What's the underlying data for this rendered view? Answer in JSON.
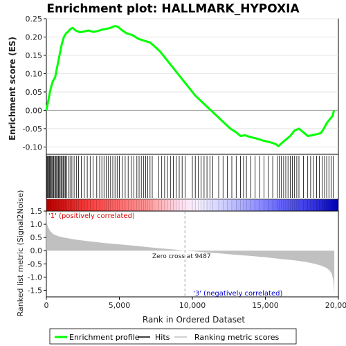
{
  "chart_data": {
    "type": "line",
    "title": "Enrichment plot: HALLMARK_HYPOXIA",
    "top_panel": {
      "ylabel": "Enrichment score (ES)",
      "ylim": [
        -0.12,
        0.25
      ],
      "yticks": [
        "0.25",
        "0.20",
        "0.15",
        "0.10",
        "0.05",
        "0.00",
        "-0.05",
        "-0.10"
      ],
      "ytick_values": [
        0.25,
        0.2,
        0.15,
        0.1,
        0.05,
        0.0,
        -0.05,
        -0.1
      ],
      "series": [
        {
          "name": "Enrichment profile",
          "color": "#00ff00",
          "x": [
            0,
            150,
            300,
            450,
            600,
            750,
            900,
            1050,
            1200,
            1350,
            1500,
            1650,
            1800,
            2000,
            2300,
            2600,
            2900,
            3200,
            3500,
            3800,
            4100,
            4400,
            4700,
            4900,
            5200,
            5500,
            5900,
            6300,
            6700,
            7100,
            7400,
            7800,
            8200,
            8600,
            9000,
            9400,
            9800,
            10200,
            10600,
            11000,
            11400,
            11800,
            12200,
            12600,
            13000,
            13300,
            13600,
            13900,
            14200,
            14500,
            14800,
            15100,
            15400,
            15700,
            15900,
            16100,
            16400,
            16700,
            17000,
            17300,
            17600,
            17900,
            18200,
            18500,
            18800,
            19000,
            19200,
            19400,
            19600,
            19700
          ],
          "y": [
            0.0,
            0.03,
            0.06,
            0.08,
            0.09,
            0.12,
            0.15,
            0.18,
            0.2,
            0.21,
            0.215,
            0.222,
            0.225,
            0.218,
            0.213,
            0.215,
            0.218,
            0.214,
            0.216,
            0.22,
            0.222,
            0.225,
            0.23,
            0.228,
            0.218,
            0.21,
            0.205,
            0.195,
            0.19,
            0.185,
            0.175,
            0.16,
            0.14,
            0.12,
            0.1,
            0.08,
            0.06,
            0.04,
            0.025,
            0.01,
            -0.005,
            -0.02,
            -0.035,
            -0.05,
            -0.06,
            -0.07,
            -0.068,
            -0.072,
            -0.075,
            -0.078,
            -0.082,
            -0.085,
            -0.088,
            -0.092,
            -0.098,
            -0.09,
            -0.08,
            -0.07,
            -0.055,
            -0.05,
            -0.06,
            -0.07,
            -0.068,
            -0.065,
            -0.062,
            -0.05,
            -0.035,
            -0.025,
            -0.015,
            0.0
          ]
        }
      ]
    },
    "hits_panel": {
      "hit_ranks": [
        20,
        60,
        110,
        150,
        210,
        260,
        320,
        380,
        440,
        500,
        570,
        640,
        700,
        760,
        830,
        890,
        950,
        1020,
        1090,
        1160,
        1230,
        1300,
        1400,
        1500,
        1620,
        1750,
        1900,
        2050,
        2200,
        2400,
        2600,
        2800,
        3000,
        3200,
        3450,
        3650,
        3800,
        3950,
        4100,
        4250,
        4400,
        4550,
        4700,
        4850,
        5000,
        5200,
        5400,
        5600,
        5800,
        6000,
        6200,
        6350,
        6500,
        6650,
        6800,
        6950,
        7100,
        7250,
        7700,
        7900,
        8100,
        8300,
        8500,
        8700,
        8900,
        9100,
        9300,
        9500,
        10000,
        10200,
        10400,
        10600,
        10800,
        11000,
        11200,
        11400,
        11800,
        12100,
        12400,
        12700,
        13000,
        13300,
        13500,
        13700,
        14000,
        14300,
        14600,
        14900,
        15200,
        15500,
        15800,
        15950,
        16100,
        16250,
        16400,
        16550,
        16700,
        16850,
        17000,
        17150,
        17300,
        17600,
        17900,
        18100,
        18300,
        18500,
        18700,
        18900,
        19050,
        19200,
        19350,
        19500,
        19650
      ]
    },
    "colorbar": {
      "positive_label": "'1' (positively correlated)",
      "negative_label": "'3' (negatively correlated)"
    },
    "bottom_panel": {
      "ylabel": "Ranked list metric (Signal2Noise)",
      "xlabel": "Rank in Ordered Dataset",
      "ylim": [
        -1.75,
        1.5
      ],
      "yticks": [
        "1.5",
        "1.0",
        "0.5",
        "0.0",
        "-0.5",
        "-1.0",
        "-1.5"
      ],
      "ytick_values": [
        1.5,
        1.0,
        0.5,
        0.0,
        -0.5,
        -1.0,
        -1.5
      ],
      "xlim": [
        0,
        20000
      ],
      "xticks": [
        "0",
        "5,000",
        "10,000",
        "15,000",
        "20,000"
      ],
      "xtick_values": [
        0,
        5000,
        10000,
        15000,
        20000
      ],
      "zero_cross_label": "Zero cross at 9487",
      "zero_cross_rank": 9487,
      "metric_curve": {
        "x": [
          0,
          50,
          150,
          300,
          500,
          800,
          1200,
          2000,
          3000,
          4000,
          5000,
          6000,
          7000,
          8000,
          9000,
          9487,
          10000,
          11000,
          12000,
          13000,
          14000,
          15000,
          16000,
          17000,
          17800,
          18400,
          18900,
          19200,
          19400,
          19550,
          19650,
          19720
        ],
        "y": [
          1.5,
          1.0,
          0.85,
          0.72,
          0.62,
          0.55,
          0.5,
          0.42,
          0.35,
          0.29,
          0.24,
          0.19,
          0.13,
          0.08,
          0.03,
          0.0,
          -0.02,
          -0.07,
          -0.11,
          -0.16,
          -0.2,
          -0.25,
          -0.31,
          -0.37,
          -0.43,
          -0.5,
          -0.58,
          -0.66,
          -0.75,
          -0.88,
          -1.1,
          -1.58
        ]
      }
    },
    "legend": {
      "items": [
        {
          "label": "Enrichment profile",
          "color": "#00ff00"
        },
        {
          "label": "Hits",
          "color": "#000000"
        },
        {
          "label": "Ranking metric scores",
          "color": "#c0c0c0"
        }
      ],
      "placement": "bottom"
    }
  }
}
